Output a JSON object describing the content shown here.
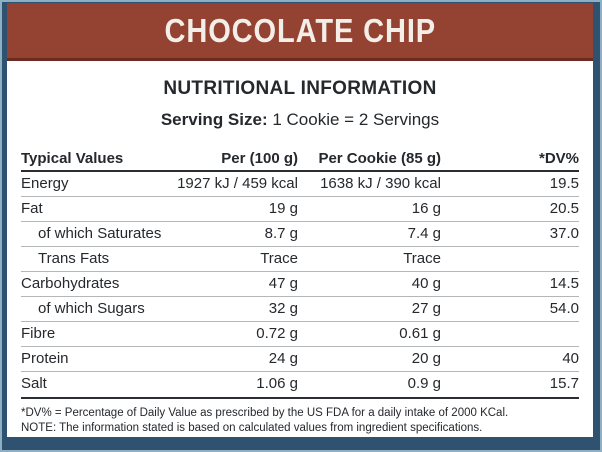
{
  "banner": {
    "title": "CHOCOLATE CHIP",
    "bg_color": "#944232",
    "text_color": "#F3EFE8"
  },
  "label": {
    "title": "NUTRITIONAL INFORMATION",
    "serving_label": "Serving Size:",
    "serving_value": "1 Cookie = 2 Servings"
  },
  "table": {
    "columns": [
      "Typical Values",
      "Per (100 g)",
      "Per Cookie (85 g)",
      "*DV%"
    ],
    "rows": [
      {
        "name": "Energy",
        "per100": "1927 kJ / 459 kcal",
        "perCookie": "1638 kJ / 390 kcal",
        "dv": "19.5",
        "indent": false
      },
      {
        "name": "Fat",
        "per100": "19 g",
        "perCookie": "16 g",
        "dv": "20.5",
        "indent": false
      },
      {
        "name": "of which Saturates",
        "per100": "8.7 g",
        "perCookie": "7.4 g",
        "dv": "37.0",
        "indent": true
      },
      {
        "name": "Trans Fats",
        "per100": "Trace",
        "perCookie": "Trace",
        "dv": "",
        "indent": true
      },
      {
        "name": "Carbohydrates",
        "per100": "47 g",
        "perCookie": "40 g",
        "dv": "14.5",
        "indent": false
      },
      {
        "name": "of which Sugars",
        "per100": "32 g",
        "perCookie": "27 g",
        "dv": "54.0",
        "indent": true
      },
      {
        "name": "Fibre",
        "per100": "0.72 g",
        "perCookie": "0.61 g",
        "dv": "",
        "indent": false
      },
      {
        "name": "Protein",
        "per100": "24 g",
        "perCookie": "20 g",
        "dv": "40",
        "indent": false
      },
      {
        "name": "Salt",
        "per100": "1.06 g",
        "perCookie": "0.9 g",
        "dv": "15.7",
        "indent": false
      }
    ]
  },
  "footnotes": [
    "*DV% = Percentage of Daily Value as prescribed by the US FDA for a daily intake of 2000 KCal.",
    "NOTE: The information stated is based on calculated values from ingredient specifications."
  ],
  "colors": {
    "frame_background": "#2F5270",
    "frame_edge_highlight": "#8FAFC2",
    "banner_background": "#944232",
    "banner_bottom_edge": "#6D2B20",
    "text": "#25282C",
    "rule_dark": "#2B2E32",
    "rule_light": "#B3B7BA"
  }
}
